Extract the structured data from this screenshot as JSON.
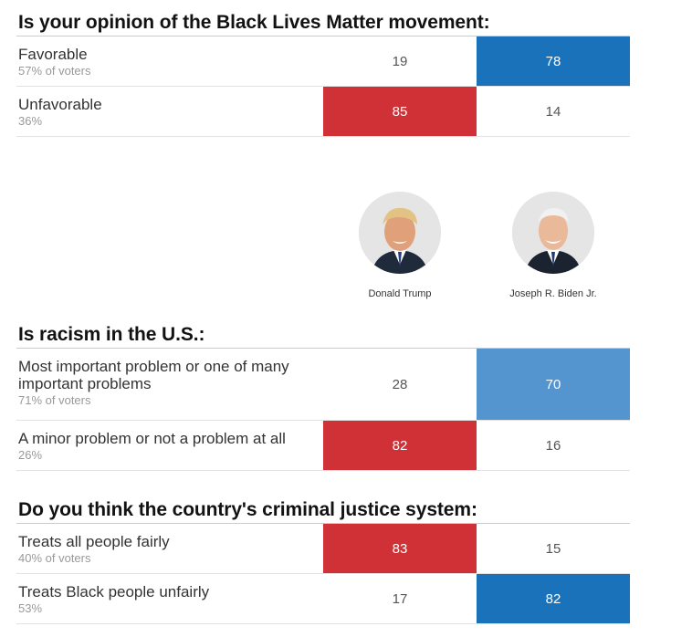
{
  "candidates": {
    "trump": "Donald Trump",
    "biden": "Joseph R. Biden Jr."
  },
  "colors": {
    "trump": "#cf3136",
    "biden": "#1a72bb",
    "biden_light": "#5595cf"
  },
  "chart_data": [
    {
      "type": "table",
      "title": "Is your opinion of the Black Lives Matter movement:",
      "columns": [
        "Donald Trump",
        "Joseph R. Biden Jr."
      ],
      "rows": [
        {
          "answer": "Favorable",
          "share": "57% of voters",
          "trump": 19,
          "biden": 78
        },
        {
          "answer": "Unfavorable",
          "share": "36%",
          "trump": 85,
          "biden": 14
        }
      ]
    },
    {
      "type": "table",
      "title": "Is racism in the U.S.:",
      "columns": [
        "Donald Trump",
        "Joseph R. Biden Jr."
      ],
      "rows": [
        {
          "answer": "Most important problem or one of many important problems",
          "share": "71% of voters",
          "trump": 28,
          "biden": 70
        },
        {
          "answer": "A minor problem or not a problem at all",
          "share": "26%",
          "trump": 82,
          "biden": 16
        }
      ]
    },
    {
      "type": "table",
      "title": "Do you think the country's criminal justice system:",
      "columns": [
        "Donald Trump",
        "Joseph R. Biden Jr."
      ],
      "rows": [
        {
          "answer": "Treats all people fairly",
          "share": "40% of voters",
          "trump": 83,
          "biden": 15
        },
        {
          "answer": "Treats Black people unfairly",
          "share": "53%",
          "trump": 17,
          "biden": 82
        }
      ]
    }
  ]
}
